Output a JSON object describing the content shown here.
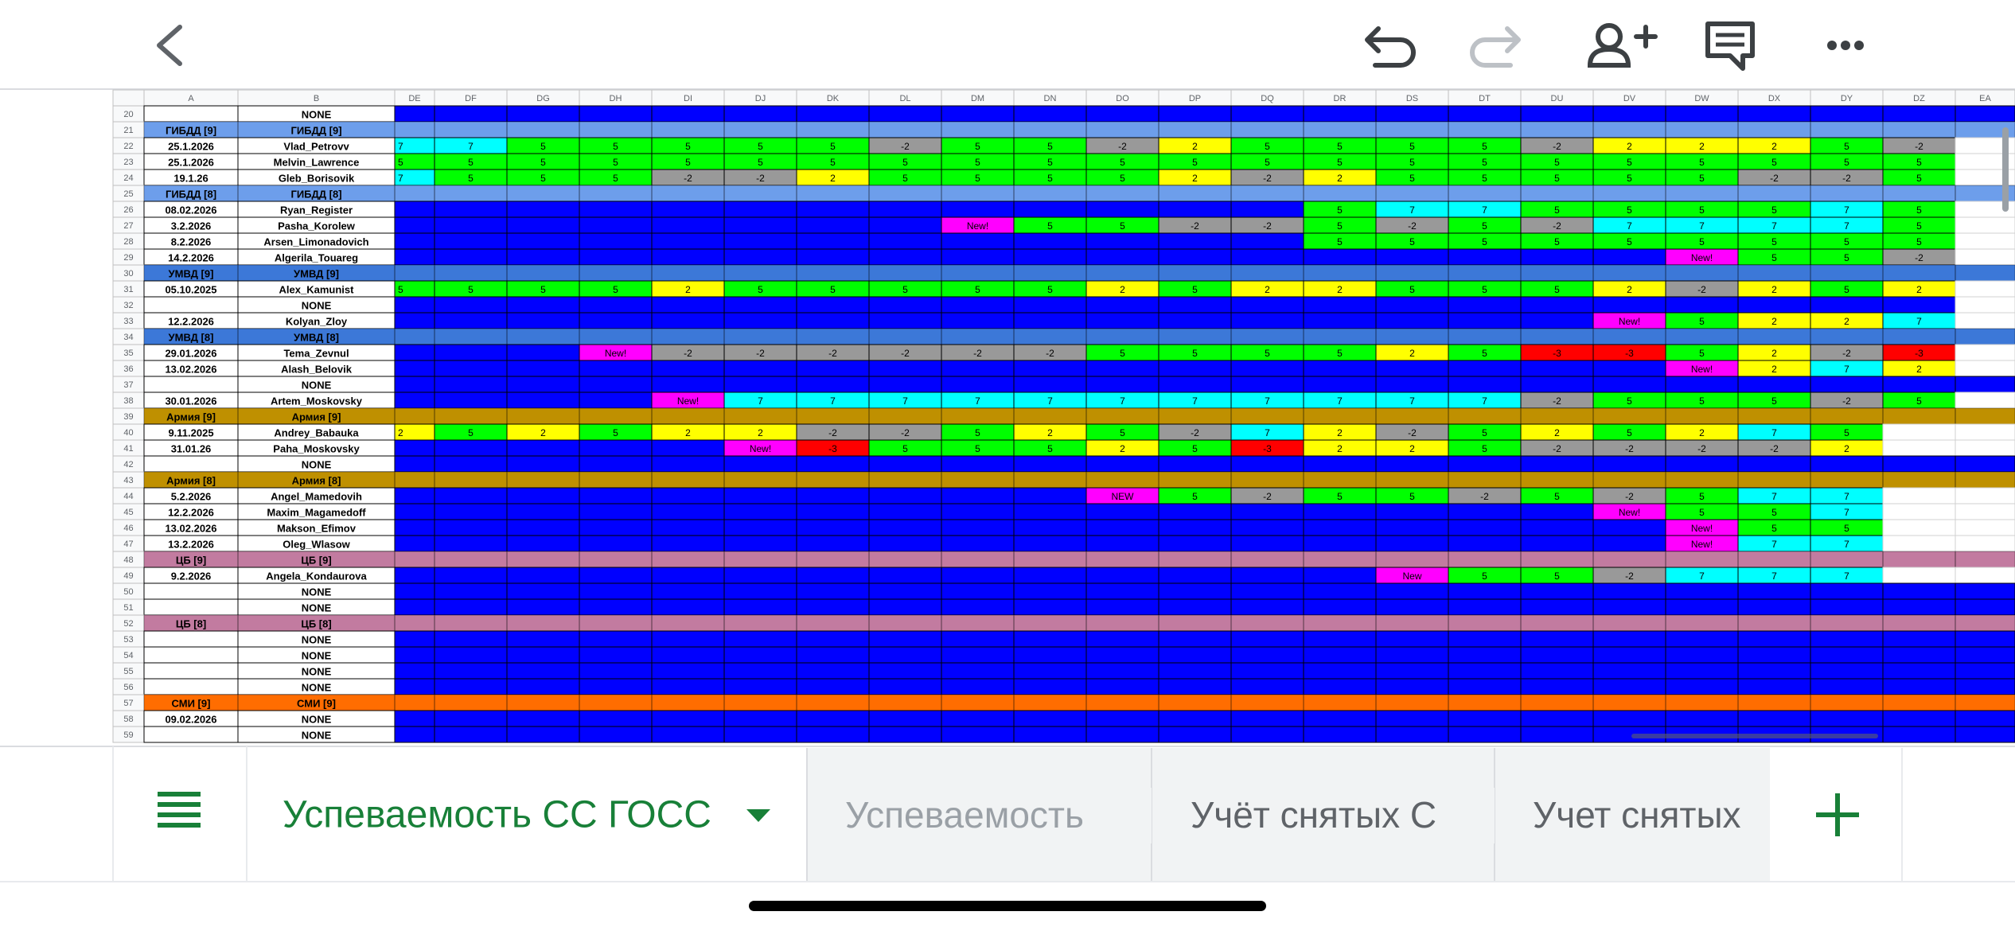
{
  "sheet": {
    "columns": [
      "A",
      "B",
      "DE",
      "DF",
      "DG",
      "DH",
      "DI",
      "DJ",
      "DK",
      "DL",
      "DM",
      "DN",
      "DO",
      "DP",
      "DQ",
      "DR",
      "DS",
      "DT",
      "DU",
      "DV",
      "DW",
      "DX",
      "DY",
      "DZ",
      "EA"
    ],
    "palette": {
      "5": "#00ff00",
      "7": "#00ffff",
      "2": "#ffff00",
      "-2": "#999999",
      "-3": "#ff0000",
      "New!": "#ff00ff",
      "NEW": "#ff00ff",
      "New": "#ff00ff"
    },
    "blank_color": "#0000ff",
    "outside_color": "#ffffff",
    "rows": [
      {
        "n": 20,
        "a": null,
        "b": "NONE",
        "cells": [
          null,
          null,
          null,
          null,
          null,
          null,
          null,
          null,
          null,
          null,
          null,
          null,
          null,
          null,
          null,
          null,
          null,
          null,
          null,
          null,
          null,
          null,
          null
        ]
      },
      {
        "n": 21,
        "section": "ГИБДД [9]",
        "color": "#6d9eeb"
      },
      {
        "n": 22,
        "a": "25.1.2026",
        "b": "Vlad_Petrovv",
        "cells": [
          "7",
          "7",
          "5",
          "5",
          "5",
          "5",
          "5",
          "-2",
          "5",
          "5",
          "-2",
          "2",
          "5",
          "5",
          "5",
          "5",
          "-2",
          "2",
          "2",
          "2",
          "5",
          "-2"
        ]
      },
      {
        "n": 23,
        "a": "25.1.2026",
        "b": "Melvin_Lawrence",
        "cells": [
          "5",
          "5",
          "5",
          "5",
          "5",
          "5",
          "5",
          "5",
          "5",
          "5",
          "5",
          "5",
          "5",
          "5",
          "5",
          "5",
          "5",
          "5",
          "5",
          "5",
          "5",
          "5"
        ]
      },
      {
        "n": 24,
        "a": "19.1.26",
        "b": "Gleb_Borisovik",
        "cells": [
          "7",
          "5",
          "5",
          "5",
          "-2",
          "-2",
          "2",
          "5",
          "5",
          "5",
          "5",
          "2",
          "-2",
          "2",
          "5",
          "5",
          "5",
          "5",
          "5",
          "-2",
          "-2",
          "5"
        ]
      },
      {
        "n": 25,
        "section": "ГИБДД [8]",
        "color": "#6d9eeb"
      },
      {
        "n": 26,
        "a": "08.02.2026",
        "b": "Ryan_Register",
        "cells": [
          null,
          null,
          null,
          null,
          null,
          null,
          null,
          null,
          null,
          null,
          null,
          null,
          null,
          "5",
          "7",
          "7",
          "5",
          "5",
          "5",
          "5",
          "7",
          "5"
        ]
      },
      {
        "n": 27,
        "a": "3.2.2026",
        "b": "Pasha_Korolew",
        "cells": [
          null,
          null,
          null,
          null,
          null,
          null,
          null,
          null,
          "New!",
          "5",
          "5",
          "-2",
          "-2",
          "5",
          "-2",
          "5",
          "-2",
          "7",
          "7",
          "7",
          "7",
          "5"
        ]
      },
      {
        "n": 28,
        "a": "8.2.2026",
        "b": "Arsen_Limonadovich",
        "cells": [
          null,
          null,
          null,
          null,
          null,
          null,
          null,
          null,
          null,
          null,
          null,
          null,
          null,
          "5",
          "5",
          "5",
          "5",
          "5",
          "5",
          "5",
          "5",
          "5"
        ]
      },
      {
        "n": 29,
        "a": "14.2.2026",
        "b": "Algerila_Touareg",
        "cells": [
          null,
          null,
          null,
          null,
          null,
          null,
          null,
          null,
          null,
          null,
          null,
          null,
          null,
          null,
          null,
          null,
          null,
          null,
          "New!",
          "5",
          "5",
          "-2"
        ]
      },
      {
        "n": 30,
        "section": "УМВД [9]",
        "color": "#3c78d8"
      },
      {
        "n": 31,
        "a": "05.10.2025",
        "b": "Alex_Kamunist",
        "cells": [
          "5",
          "5",
          "5",
          "5",
          "2",
          "5",
          "5",
          "5",
          "5",
          "5",
          "2",
          "5",
          "2",
          "2",
          "5",
          "5",
          "5",
          "2",
          "-2",
          "2",
          "5",
          "2"
        ]
      },
      {
        "n": 32,
        "a": null,
        "b": "NONE",
        "cells": [
          null,
          null,
          null,
          null,
          null,
          null,
          null,
          null,
          null,
          null,
          null,
          null,
          null,
          null,
          null,
          null,
          null,
          null,
          null,
          null,
          null,
          null
        ]
      },
      {
        "n": 33,
        "a": "12.2.2026",
        "b": "Kolyan_Zloy",
        "cells": [
          null,
          null,
          null,
          null,
          null,
          null,
          null,
          null,
          null,
          null,
          null,
          null,
          null,
          null,
          null,
          null,
          null,
          "New!",
          "5",
          "2",
          "2",
          "7"
        ]
      },
      {
        "n": 34,
        "section": "УМВД [8]",
        "color": "#3c78d8"
      },
      {
        "n": 35,
        "a": "29.01.2026",
        "b": "Tema_Zevnul",
        "cells": [
          null,
          null,
          null,
          "New!",
          "-2",
          "-2",
          "-2",
          "-2",
          "-2",
          "-2",
          "5",
          "5",
          "5",
          "5",
          "2",
          "5",
          "-3",
          "-3",
          "5",
          "2",
          "-2",
          "-3"
        ]
      },
      {
        "n": 36,
        "a": "13.02.2026",
        "b": "Alash_Belovik",
        "cells": [
          null,
          null,
          null,
          null,
          null,
          null,
          null,
          null,
          null,
          null,
          null,
          null,
          null,
          null,
          null,
          null,
          null,
          null,
          "New!",
          "2",
          "7",
          "2"
        ]
      },
      {
        "n": 37,
        "a": null,
        "b": "NONE",
        "cells": [
          null,
          null,
          null,
          null,
          null,
          null,
          null,
          null,
          null,
          null,
          null,
          null,
          null,
          null,
          null,
          null,
          null,
          null,
          null,
          null,
          null,
          null,
          null
        ]
      },
      {
        "n": 38,
        "a": "30.01.2026",
        "b": "Artem_Moskovsky",
        "cells": [
          null,
          null,
          null,
          null,
          "New!",
          "7",
          "7",
          "7",
          "7",
          "7",
          "7",
          "7",
          "7",
          "7",
          "7",
          "7",
          "-2",
          "5",
          "5",
          "5",
          "-2",
          "5"
        ]
      },
      {
        "n": 39,
        "section": "Армия [9]",
        "color": "#bf9000"
      },
      {
        "n": 40,
        "a": "9.11.2025",
        "b": "Andrey_Babauka",
        "cells": [
          "2",
          "5",
          "2",
          "5",
          "2",
          "2",
          "-2",
          "-2",
          "5",
          "2",
          "5",
          "-2",
          "7",
          "2",
          "-2",
          "5",
          "2",
          "5",
          "2",
          "7",
          "5"
        ]
      },
      {
        "n": 41,
        "a": "31.01.26",
        "b": "Paha_Moskovsky",
        "cells": [
          null,
          null,
          null,
          null,
          null,
          "New!",
          "-3",
          "5",
          "5",
          "5",
          "2",
          "5",
          "-3",
          "2",
          "2",
          "5",
          "-2",
          "-2",
          "-2",
          "-2",
          "2"
        ]
      },
      {
        "n": 42,
        "a": null,
        "b": "NONE",
        "cells": [
          null,
          null,
          null,
          null,
          null,
          null,
          null,
          null,
          null,
          null,
          null,
          null,
          null,
          null,
          null,
          null,
          null,
          null,
          null,
          null,
          null,
          null,
          null
        ]
      },
      {
        "n": 43,
        "section": "Армия [8]",
        "color": "#bf9000"
      },
      {
        "n": 44,
        "a": "5.2.2026",
        "b": "Angel_Mamedovih",
        "cells": [
          null,
          null,
          null,
          null,
          null,
          null,
          null,
          null,
          null,
          null,
          "NEW",
          "5",
          "-2",
          "5",
          "5",
          "-2",
          "5",
          "-2",
          "5",
          "7",
          "7"
        ]
      },
      {
        "n": 45,
        "a": "12.2.2026",
        "b": "Maxim_Magamedoff",
        "cells": [
          null,
          null,
          null,
          null,
          null,
          null,
          null,
          null,
          null,
          null,
          null,
          null,
          null,
          null,
          null,
          null,
          null,
          "New!",
          "5",
          "5",
          "7"
        ]
      },
      {
        "n": 46,
        "a": "13.02.2026",
        "b": "Makson_Efimov",
        "cells": [
          null,
          null,
          null,
          null,
          null,
          null,
          null,
          null,
          null,
          null,
          null,
          null,
          null,
          null,
          null,
          null,
          null,
          null,
          "New!",
          "5",
          "5"
        ]
      },
      {
        "n": 47,
        "a": "13.2.2026",
        "b": "Oleg_Wlasow",
        "cells": [
          null,
          null,
          null,
          null,
          null,
          null,
          null,
          null,
          null,
          null,
          null,
          null,
          null,
          null,
          null,
          null,
          null,
          null,
          "New!",
          "7",
          "7"
        ]
      },
      {
        "n": 48,
        "section": "ЦБ [9]",
        "color": "#c27ba0"
      },
      {
        "n": 49,
        "a": "9.2.2026",
        "b": "Angela_Kondaurova",
        "cells": [
          null,
          null,
          null,
          null,
          null,
          null,
          null,
          null,
          null,
          null,
          null,
          null,
          null,
          null,
          "New",
          "5",
          "5",
          "-2",
          "7",
          "7",
          "7"
        ]
      },
      {
        "n": 50,
        "a": null,
        "b": "NONE",
        "cells": [
          null,
          null,
          null,
          null,
          null,
          null,
          null,
          null,
          null,
          null,
          null,
          null,
          null,
          null,
          null,
          null,
          null,
          null,
          null,
          null,
          null,
          null,
          null
        ]
      },
      {
        "n": 51,
        "a": null,
        "b": "NONE",
        "cells": [
          null,
          null,
          null,
          null,
          null,
          null,
          null,
          null,
          null,
          null,
          null,
          null,
          null,
          null,
          null,
          null,
          null,
          null,
          null,
          null,
          null,
          null,
          null
        ]
      },
      {
        "n": 52,
        "section": "ЦБ [8]",
        "color": "#c27ba0"
      },
      {
        "n": 53,
        "a": null,
        "b": "NONE",
        "cells": [
          null,
          null,
          null,
          null,
          null,
          null,
          null,
          null,
          null,
          null,
          null,
          null,
          null,
          null,
          null,
          null,
          null,
          null,
          null,
          null,
          null,
          null,
          null
        ]
      },
      {
        "n": 54,
        "a": null,
        "b": "NONE",
        "cells": [
          null,
          null,
          null,
          null,
          null,
          null,
          null,
          null,
          null,
          null,
          null,
          null,
          null,
          null,
          null,
          null,
          null,
          null,
          null,
          null,
          null,
          null,
          null
        ]
      },
      {
        "n": 55,
        "a": null,
        "b": "NONE",
        "cells": [
          null,
          null,
          null,
          null,
          null,
          null,
          null,
          null,
          null,
          null,
          null,
          null,
          null,
          null,
          null,
          null,
          null,
          null,
          null,
          null,
          null,
          null,
          null
        ]
      },
      {
        "n": 56,
        "a": null,
        "b": "NONE",
        "cells": [
          null,
          null,
          null,
          null,
          null,
          null,
          null,
          null,
          null,
          null,
          null,
          null,
          null,
          null,
          null,
          null,
          null,
          null,
          null,
          null,
          null,
          null,
          null
        ]
      },
      {
        "n": 57,
        "section": "СМИ [9]",
        "color": "#ff6d01"
      },
      {
        "n": 58,
        "a": "09.02.2026",
        "b": "NONE",
        "cells": [
          null,
          null,
          null,
          null,
          null,
          null,
          null,
          null,
          null,
          null,
          null,
          null,
          null,
          null,
          null,
          null,
          null,
          null,
          null,
          null,
          null,
          null,
          null
        ]
      },
      {
        "n": 59,
        "a": null,
        "b": "NONE",
        "cells": [
          null,
          null,
          null,
          null,
          null,
          null,
          null,
          null,
          null,
          null,
          null,
          null,
          null,
          null,
          null,
          null,
          null,
          null,
          null,
          null,
          null,
          null,
          null
        ]
      }
    ]
  },
  "tabs": [
    "Успеваемость СС ГОСС",
    "Успеваемость",
    "Учёт снятых С",
    "Учет снятых"
  ]
}
